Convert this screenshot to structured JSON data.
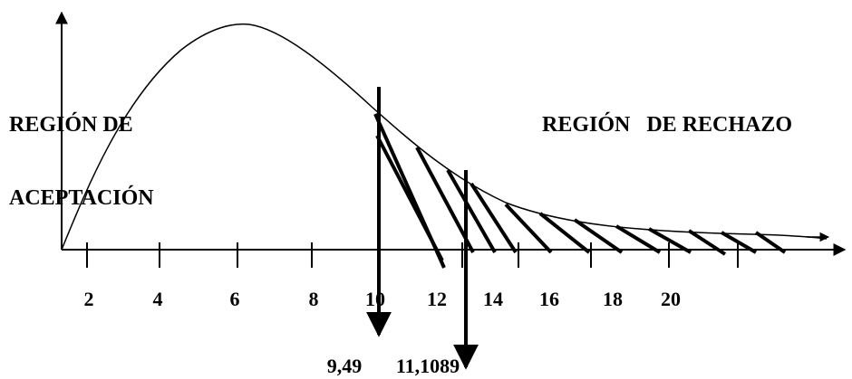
{
  "labels": {
    "acceptance_line1": "REGIÓN DE",
    "acceptance_line2": "ACEPTACIÓN",
    "rejection": "REGIÓN   DE RECHAZO"
  },
  "x_ticks": [
    "2",
    "4",
    "6",
    "8",
    "10",
    "12",
    "14",
    "16",
    "18",
    "20"
  ],
  "critical_values": [
    "9,49",
    "11,1089"
  ],
  "colors": {
    "ink": "#000000",
    "background": "#ffffff"
  }
}
